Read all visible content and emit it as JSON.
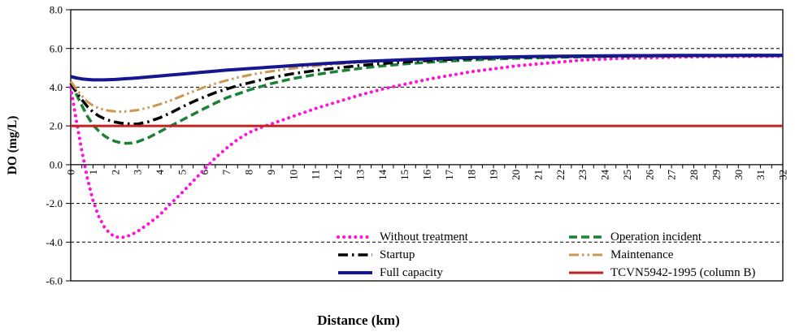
{
  "chart_data": {
    "type": "line",
    "title": "",
    "xlabel": "Distance (km)",
    "ylabel": "DO (mg/L)",
    "xlim": [
      0,
      32
    ],
    "ylim": [
      -6,
      8
    ],
    "grid_on": true,
    "grid_y": [
      6,
      4,
      -2,
      -4
    ],
    "minor_tick_step": 0.5,
    "legend_position": "bottom-inside-two-columns",
    "legend_columns": [
      [
        0,
        2,
        4
      ],
      [
        1,
        3,
        5
      ]
    ],
    "axis_color": "#000000",
    "y_tick_values": [
      8,
      6,
      4,
      2,
      0,
      -2,
      -4,
      -6
    ],
    "y_tick_labels": [
      "8.0",
      "6.0",
      "4.0",
      "2.0",
      "0.0",
      "-2.0",
      "-4.0",
      "-6.0"
    ],
    "x_tick_values": [
      0,
      1,
      2,
      3,
      4,
      5,
      6,
      7,
      8,
      9,
      10,
      11,
      12,
      13,
      14,
      15,
      16,
      17,
      18,
      19,
      20,
      21,
      22,
      23,
      24,
      25,
      26,
      27,
      28,
      29,
      30,
      31,
      32
    ],
    "x_tick_labels": [
      "0",
      "1",
      "2",
      "3",
      "4",
      "5",
      "6",
      "7",
      "8",
      "9",
      "10",
      "11",
      "12",
      "13",
      "14",
      "15",
      "16",
      "17",
      "18",
      "19",
      "20",
      "21",
      "22",
      "23",
      "24",
      "25",
      "26",
      "27",
      "28",
      "29",
      "30",
      "31",
      "32"
    ],
    "x": [
      0,
      0.25,
      0.5,
      0.75,
      1,
      1.25,
      1.5,
      1.75,
      2,
      2.25,
      2.5,
      2.75,
      3,
      3.5,
      4,
      4.5,
      5,
      5.5,
      6,
      6.5,
      7,
      7.5,
      8,
      8.5,
      9,
      9.5,
      10,
      11,
      12,
      13,
      14,
      15,
      16,
      17,
      18,
      19,
      20,
      21,
      22,
      23,
      24,
      25,
      26,
      27,
      28,
      29,
      30,
      31,
      32
    ],
    "series": [
      {
        "name": "Without treatment",
        "color": "#FF10DC",
        "style": "dotted",
        "width": 4,
        "values": [
          4.0,
          2.3,
          0.7,
          -0.7,
          -1.85,
          -2.65,
          -3.2,
          -3.55,
          -3.72,
          -3.77,
          -3.72,
          -3.6,
          -3.45,
          -3.05,
          -2.6,
          -2.0,
          -1.45,
          -0.85,
          -0.25,
          0.35,
          0.85,
          1.3,
          1.65,
          1.9,
          2.1,
          2.3,
          2.5,
          2.9,
          3.25,
          3.6,
          3.9,
          4.15,
          4.4,
          4.6,
          4.8,
          4.95,
          5.1,
          5.2,
          5.3,
          5.4,
          5.45,
          5.5,
          5.52,
          5.55,
          5.57,
          5.58,
          5.58,
          5.59,
          5.6
        ]
      },
      {
        "name": "Operation incident",
        "color": "#198237",
        "style": "dashed",
        "width": 3.5,
        "values": [
          4.25,
          3.65,
          3.05,
          2.5,
          2.05,
          1.75,
          1.5,
          1.32,
          1.2,
          1.13,
          1.1,
          1.12,
          1.18,
          1.4,
          1.7,
          2.0,
          2.3,
          2.6,
          2.9,
          3.18,
          3.45,
          3.65,
          3.85,
          4.02,
          4.18,
          4.32,
          4.45,
          4.65,
          4.82,
          4.97,
          5.1,
          5.2,
          5.28,
          5.35,
          5.4,
          5.45,
          5.49,
          5.52,
          5.55,
          5.57,
          5.58,
          5.6,
          5.6,
          5.61,
          5.62,
          5.62,
          5.63,
          5.63,
          5.63
        ]
      },
      {
        "name": "Startup",
        "color": "#000000",
        "style": "dashdot",
        "width": 3.5,
        "values": [
          4.2,
          3.75,
          3.35,
          3.0,
          2.72,
          2.52,
          2.38,
          2.28,
          2.2,
          2.15,
          2.12,
          2.1,
          2.1,
          2.22,
          2.42,
          2.68,
          2.98,
          3.25,
          3.5,
          3.72,
          3.9,
          4.08,
          4.22,
          4.36,
          4.48,
          4.6,
          4.7,
          4.86,
          5.0,
          5.12,
          5.22,
          5.3,
          5.37,
          5.43,
          5.48,
          5.51,
          5.54,
          5.56,
          5.58,
          5.59,
          5.6,
          5.61,
          5.62,
          5.62,
          5.63,
          5.63,
          5.63,
          5.63,
          5.63
        ]
      },
      {
        "name": "Maintenance",
        "color": "#CC9752",
        "style": "dashdotdot",
        "width": 3,
        "values": [
          4.3,
          3.9,
          3.55,
          3.25,
          3.05,
          2.92,
          2.83,
          2.78,
          2.75,
          2.74,
          2.75,
          2.78,
          2.82,
          2.95,
          3.12,
          3.32,
          3.55,
          3.78,
          4.0,
          4.18,
          4.35,
          4.5,
          4.62,
          4.73,
          4.82,
          4.9,
          4.98,
          5.1,
          5.2,
          5.28,
          5.35,
          5.42,
          5.47,
          5.51,
          5.54,
          5.56,
          5.58,
          5.6,
          5.6,
          5.61,
          5.62,
          5.62,
          5.63,
          5.63,
          5.63,
          5.64,
          5.64,
          5.64,
          5.64
        ]
      },
      {
        "name": "Full capacity",
        "color": "#16168F",
        "style": "solid",
        "width": 4,
        "values": [
          4.55,
          4.48,
          4.43,
          4.4,
          4.38,
          4.38,
          4.38,
          4.39,
          4.4,
          4.42,
          4.44,
          4.46,
          4.48,
          4.53,
          4.58,
          4.63,
          4.68,
          4.73,
          4.78,
          4.83,
          4.88,
          4.92,
          4.96,
          5.0,
          5.04,
          5.08,
          5.12,
          5.19,
          5.26,
          5.32,
          5.37,
          5.42,
          5.46,
          5.5,
          5.53,
          5.55,
          5.57,
          5.59,
          5.6,
          5.61,
          5.62,
          5.63,
          5.63,
          5.64,
          5.64,
          5.64,
          5.65,
          5.65,
          5.65
        ]
      },
      {
        "name": "TCVN5942-1995 (column B)",
        "color": "#C32222",
        "style": "solid",
        "width": 3,
        "constant": 2.0
      }
    ]
  }
}
